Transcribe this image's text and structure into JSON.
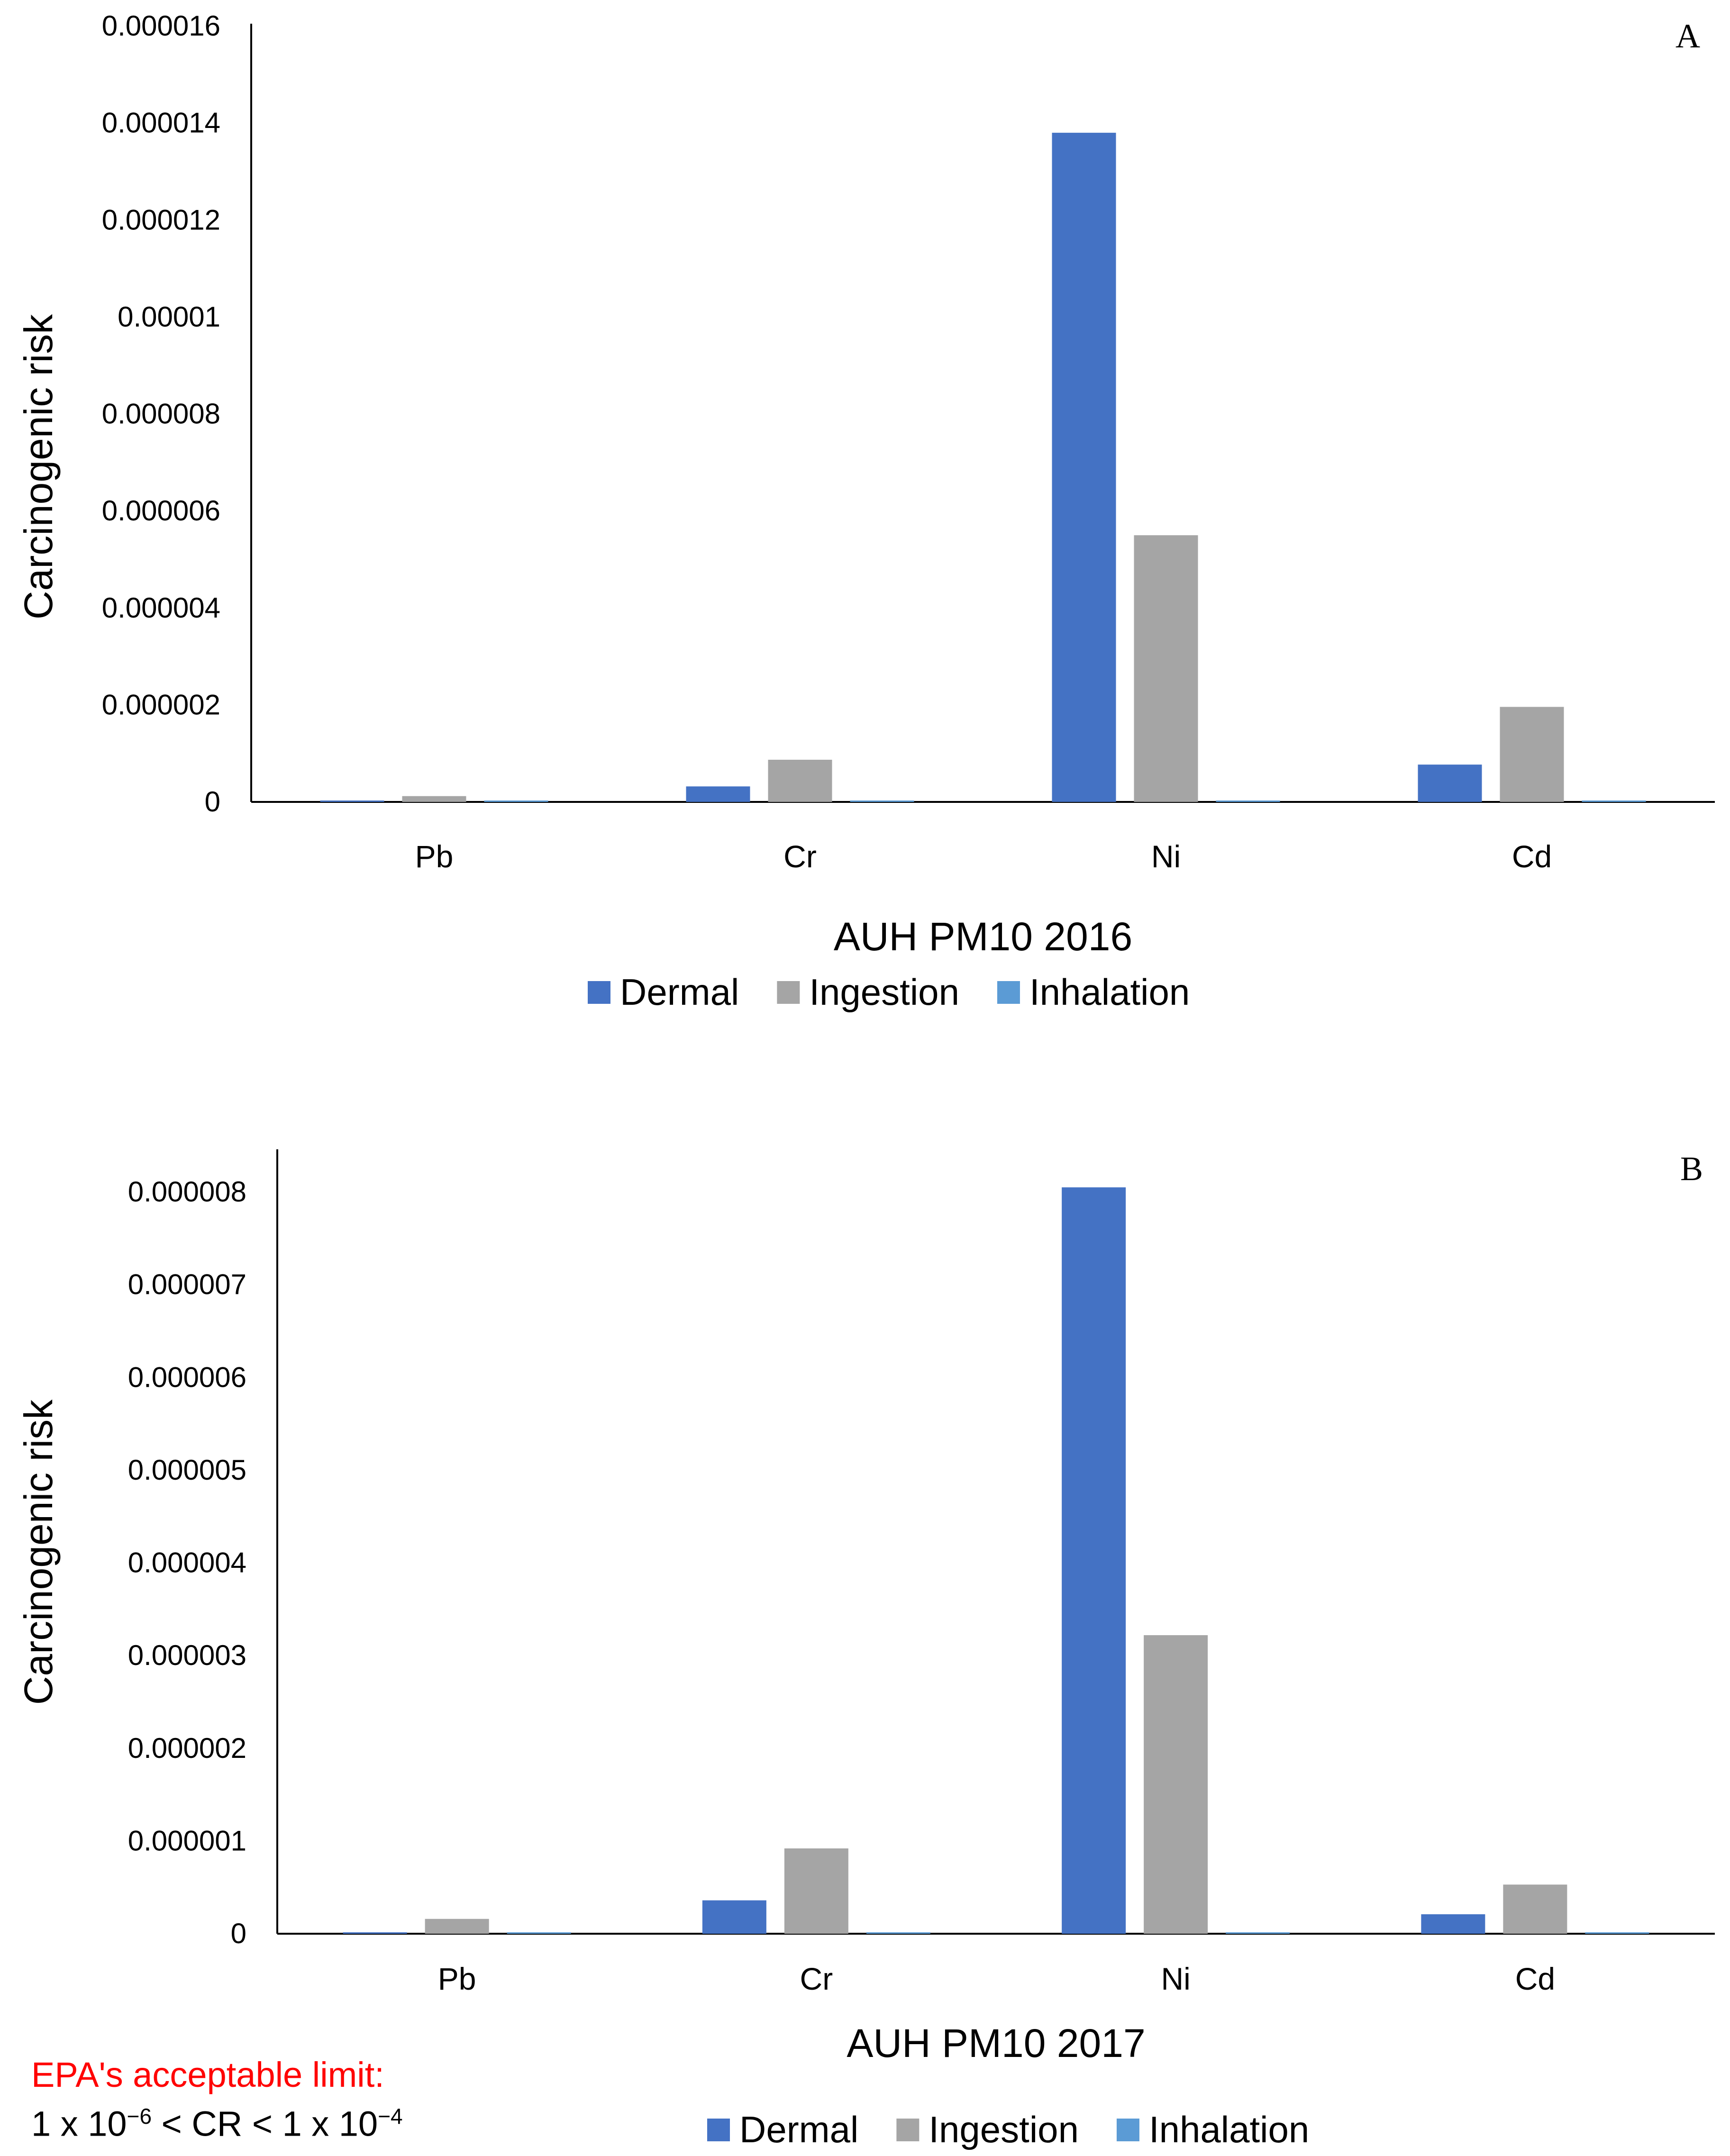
{
  "colors": {
    "dermal": "#4472C4",
    "ingestion": "#A5A5A5",
    "inhalation": "#5B9BD5",
    "axis": "#000000",
    "note": "#FF0000"
  },
  "legend": [
    "Dermal",
    "Ingestion",
    "Inhalation"
  ],
  "chart_data": [
    {
      "type": "bar",
      "panel": "A",
      "title": "",
      "xlabel": "AUH PM10 2016",
      "ylabel": "Carcinogenic risk",
      "categories": [
        "Pb",
        "Cr",
        "Ni",
        "Cd"
      ],
      "ylim": [
        0,
        1.6e-05
      ],
      "yticks": [
        "0",
        "0.000002",
        "0.000004",
        "0.000006",
        "0.000008",
        "0.00001",
        "0.000012",
        "0.000014",
        "0.000016"
      ],
      "series": [
        {
          "name": "Dermal",
          "values": [
            2e-08,
            3.2e-07,
            1.38e-05,
            7.7e-07
          ]
        },
        {
          "name": "Ingestion",
          "values": [
            1.2e-07,
            8.7e-07,
            5.5e-06,
            1.96e-06
          ]
        },
        {
          "name": "Inhalation",
          "values": [
            5e-10,
            2e-09,
            8e-09,
            4e-09
          ]
        }
      ],
      "legend_position": "bottom"
    },
    {
      "type": "bar",
      "panel": "B",
      "title": "",
      "xlabel": "AUH PM10 2017",
      "ylabel": "Carcinogenic risk",
      "categories": [
        "Pb",
        "Cr",
        "Ni",
        "Cd"
      ],
      "ylim": [
        0,
        8.5e-06
      ],
      "yticks": [
        "0",
        "0.000001",
        "0.000002",
        "0.000003",
        "0.000004",
        "0.000005",
        "0.000006",
        "0.000007",
        "0.000008"
      ],
      "series": [
        {
          "name": "Dermal",
          "values": [
            1e-08,
            3.6e-07,
            8.05e-06,
            2.1e-07
          ]
        },
        {
          "name": "Ingestion",
          "values": [
            1.6e-07,
            9.2e-07,
            3.22e-06,
            5.3e-07
          ]
        },
        {
          "name": "Inhalation",
          "values": [
            3e-10,
            1e-09,
            6e-09,
            2e-09
          ]
        }
      ],
      "legend_position": "bottom"
    }
  ],
  "note": {
    "line1": "EPA's acceptable limit:",
    "line2_a": "1 x 10",
    "line2_exp1": "−6",
    "line2_b": " < CR < 1 x 10",
    "line2_exp2": "−4"
  }
}
